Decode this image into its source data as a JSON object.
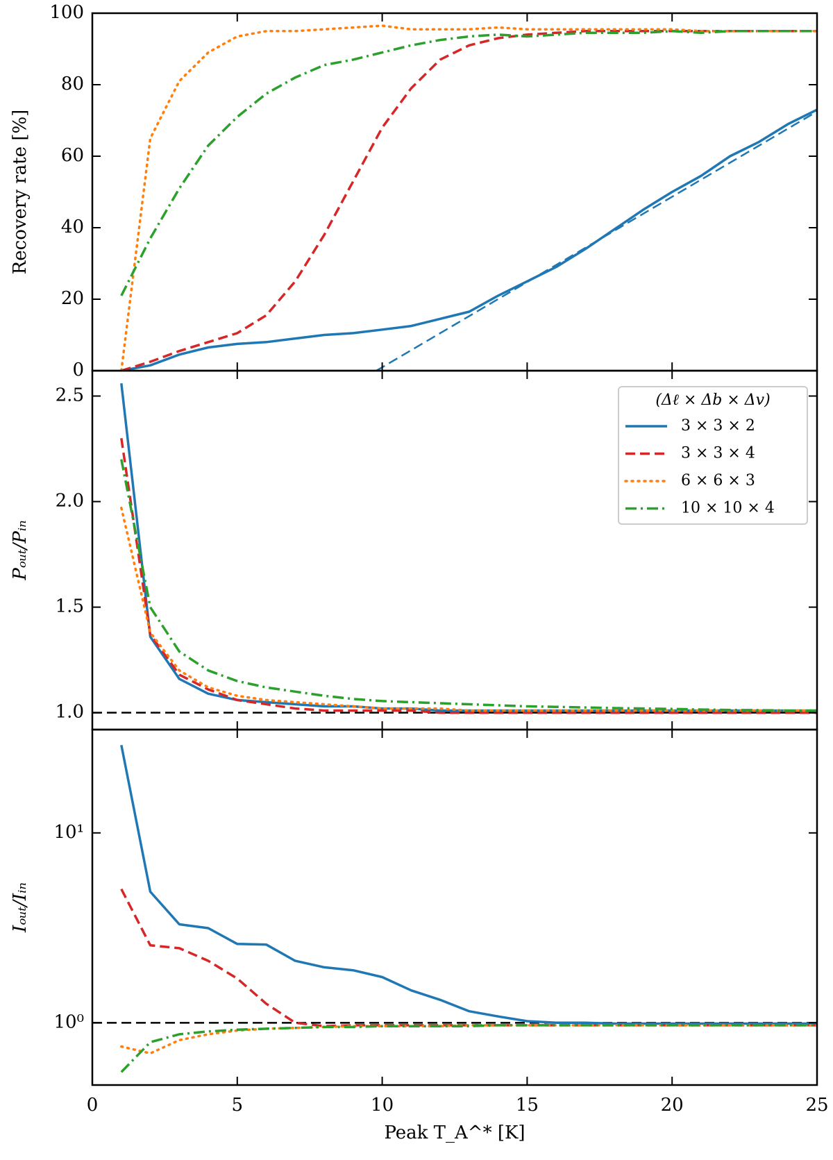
{
  "chart_data": [
    {
      "type": "line",
      "ylabel": "Recovery rate [%]",
      "ylim": [
        0,
        100
      ],
      "yticks": [
        0,
        20,
        40,
        60,
        80,
        100
      ],
      "x": [
        1,
        2,
        3,
        4,
        5,
        6,
        7,
        8,
        9,
        10,
        11,
        12,
        13,
        14,
        15,
        16,
        17,
        18,
        19,
        20,
        21,
        22,
        23,
        24,
        25
      ],
      "series": [
        {
          "color": "#1f77b4",
          "linestyle": "solid",
          "values": [
            0,
            1.5,
            4.5,
            6.5,
            7.5,
            8,
            9,
            10,
            10.5,
            11.5,
            12.5,
            14.5,
            16.5,
            21,
            25,
            29,
            34,
            39.5,
            45,
            50,
            54.5,
            60,
            64,
            69,
            73
          ]
        },
        {
          "color": "#d62728",
          "linestyle": "dashed",
          "values": [
            0,
            2.5,
            5.5,
            8,
            10.5,
            15.5,
            25,
            38,
            53,
            68,
            79,
            87,
            91,
            93,
            94,
            94.5,
            95,
            95,
            95,
            95,
            95,
            95,
            95,
            95,
            95
          ]
        },
        {
          "color": "#ff7f0e",
          "linestyle": "dotted",
          "values": [
            0,
            65,
            81,
            89,
            93.5,
            95,
            95,
            95.5,
            96,
            96.5,
            95.5,
            95.5,
            95.5,
            96,
            95.5,
            95.5,
            95.5,
            95.5,
            95.5,
            95.5,
            95,
            95,
            95,
            95,
            95
          ]
        },
        {
          "color": "#2ca02c",
          "linestyle": "dashdot",
          "values": [
            21,
            37,
            51,
            63,
            71,
            77.5,
            82,
            85.5,
            87,
            89,
            91,
            92.5,
            93.5,
            94,
            93.5,
            94,
            94.5,
            94.5,
            94.5,
            95,
            94.5,
            95,
            95,
            95,
            95
          ]
        }
      ],
      "fit_line": {
        "color": "#1f77b4",
        "linestyle": "dashed",
        "x": [
          9.8,
          25
        ],
        "values": [
          0,
          72.5
        ]
      }
    },
    {
      "type": "line",
      "ylabel": "Pₒᵤₜ/Pᵢₙ",
      "ylim": [
        0.92,
        2.62
      ],
      "yticks": [
        {
          "value": 1,
          "label": "1.0"
        },
        1.5,
        {
          "value": 2,
          "label": "2.0"
        },
        2.5
      ],
      "hline": {
        "value": 1,
        "color": "#000000",
        "linestyle": "dashed"
      },
      "legend": {
        "title": "(Δℓ × Δb × Δv)",
        "position": "upper right"
      },
      "x": [
        1,
        2,
        3,
        4,
        5,
        6,
        7,
        8,
        9,
        10,
        11,
        12,
        13,
        14,
        15,
        16,
        17,
        18,
        19,
        20,
        21,
        22,
        23,
        24,
        25
      ],
      "series": [
        {
          "name": "3 × 3 × 2",
          "color": "#1f77b4",
          "linestyle": "solid",
          "values": [
            2.56,
            1.36,
            1.16,
            1.09,
            1.06,
            1.05,
            1.04,
            1.03,
            1.03,
            1.02,
            1.02,
            1.01,
            1.01,
            1.01,
            1.01,
            1.01,
            1.01,
            1.01,
            1.01,
            1.01,
            1.01,
            1.01,
            1.01,
            1.01,
            1.01
          ]
        },
        {
          "name": "3 × 3 × 4",
          "color": "#d62728",
          "linestyle": "dashed",
          "values": [
            2.3,
            1.37,
            1.18,
            1.11,
            1.06,
            1.04,
            1.02,
            1.01,
            1.01,
            1.01,
            1.01,
            1,
            1,
            1,
            1,
            1,
            1,
            1,
            1,
            1,
            1,
            1,
            1,
            1,
            1
          ]
        },
        {
          "name": "6 × 6 × 3",
          "color": "#ff7f0e",
          "linestyle": "dotted",
          "values": [
            1.97,
            1.38,
            1.2,
            1.12,
            1.08,
            1.06,
            1.05,
            1.04,
            1.03,
            1.02,
            1.02,
            1.02,
            1.01,
            1.01,
            1.01,
            1.01,
            1.01,
            1.01,
            1.01,
            1.01,
            1.01,
            1.01,
            1.01,
            1.01,
            1.01
          ]
        },
        {
          "name": "10 × 10 × 4",
          "color": "#2ca02c",
          "linestyle": "dashdot",
          "values": [
            2.2,
            1.5,
            1.29,
            1.2,
            1.15,
            1.12,
            1.1,
            1.08,
            1.065,
            1.055,
            1.05,
            1.045,
            1.04,
            1.035,
            1.03,
            1.028,
            1.025,
            1.022,
            1.02,
            1.018,
            1.015,
            1.013,
            1.012,
            1.01,
            1.01
          ]
        }
      ]
    },
    {
      "type": "line",
      "ylabel": "Iₒᵤₜ/Iᵢₙ",
      "xlabel": "Peak T_A^* [K]",
      "log_y": true,
      "ylim": [
        0.47,
        35
      ],
      "yticks": [
        {
          "value": 1,
          "label": "10⁰"
        },
        {
          "value": 10,
          "label": "10¹"
        }
      ],
      "xlim": [
        0,
        25
      ],
      "xticks": [
        0,
        5,
        10,
        15,
        20,
        25
      ],
      "hline": {
        "value": 1,
        "color": "#000000",
        "linestyle": "dashed"
      },
      "x": [
        1,
        2,
        3,
        4,
        5,
        6,
        7,
        8,
        9,
        10,
        11,
        12,
        13,
        14,
        15,
        16,
        17,
        18,
        19,
        20,
        21,
        22,
        23,
        24,
        25
      ],
      "series": [
        {
          "color": "#1f77b4",
          "linestyle": "solid",
          "values": [
            29,
            4.9,
            3.3,
            3.15,
            2.6,
            2.58,
            2.12,
            1.96,
            1.89,
            1.74,
            1.48,
            1.32,
            1.15,
            1.08,
            1.02,
            1,
            1,
            0.99,
            0.99,
            0.99,
            0.99,
            0.99,
            0.99,
            0.99,
            0.99
          ]
        },
        {
          "color": "#d62728",
          "linestyle": "dashed",
          "values": [
            5.06,
            2.56,
            2.47,
            2.12,
            1.71,
            1.26,
            1,
            0.96,
            0.97,
            0.97,
            0.97,
            0.97,
            0.97,
            0.97,
            0.97,
            0.97,
            0.97,
            0.97,
            0.97,
            0.97,
            0.97,
            0.97,
            0.97,
            0.97,
            0.97
          ]
        },
        {
          "color": "#ff7f0e",
          "linestyle": "dotted",
          "values": [
            0.75,
            0.69,
            0.81,
            0.87,
            0.91,
            0.93,
            0.94,
            0.95,
            0.96,
            0.96,
            0.96,
            0.96,
            0.97,
            0.97,
            0.97,
            0.97,
            0.97,
            0.97,
            0.97,
            0.97,
            0.97,
            0.97,
            0.97,
            0.97,
            0.97
          ]
        },
        {
          "color": "#2ca02c",
          "linestyle": "dashdot",
          "values": [
            0.55,
            0.79,
            0.87,
            0.9,
            0.92,
            0.93,
            0.94,
            0.95,
            0.95,
            0.96,
            0.96,
            0.96,
            0.96,
            0.97,
            0.97,
            0.97,
            0.97,
            0.97,
            0.97,
            0.97,
            0.97,
            0.97,
            0.97,
            0.97,
            0.97
          ]
        }
      ]
    }
  ]
}
